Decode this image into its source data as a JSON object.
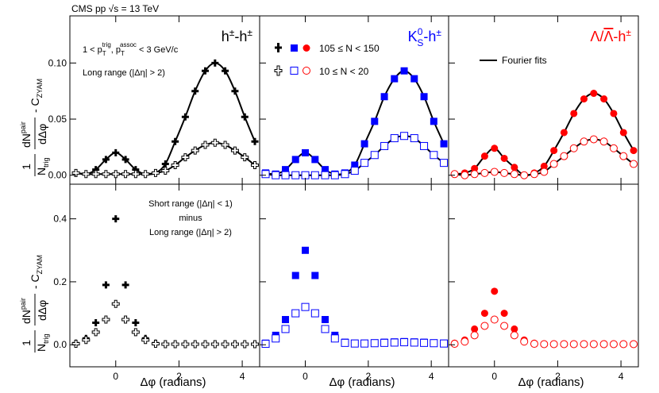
{
  "header": "CMS pp √s = 13 TeV",
  "ylabel": {
    "one": "1",
    "n": "N",
    "trig": "trig",
    "dn": "dN",
    "pair": "pair",
    "dphi": "dΔφ",
    "minus_c": "- C",
    "zyam": "ZYAM"
  },
  "xlabel": "Δφ (radians)",
  "cuts": {
    "a": "1 < p",
    "t1": "T",
    "trig": "trig",
    "b": ", p",
    "t2": "T",
    "assoc": "assoc",
    "c": " < 3 GeV/c"
  },
  "long_range": "Long range (|Δη| > 2)",
  "short_note": [
    "Short range (|Δη| < 1)",
    "minus",
    "Long range (|Δη| > 2)"
  ],
  "species": [
    {
      "base": "h",
      "sup": "±",
      "mid": "-h",
      "sup2": "±"
    },
    {
      "base": "K",
      "sup": "0",
      "sub": "S",
      "mid": "-h",
      "sup2": "±"
    },
    {
      "base": "Λ/",
      "bar": "Λ",
      "mid": "-h",
      "sup2": "±"
    }
  ],
  "legend": {
    "high": "105 ≤ N < 150",
    "low": "10 ≤ N < 20",
    "fit": "Fourier fits"
  },
  "chart_data": [
    {
      "type": "scatter",
      "fourier_fit": true,
      "ytick_labels": true,
      "xtick_labels": false,
      "xlim": [
        -1.45,
        4.55
      ],
      "xticks": [
        0,
        2,
        4
      ],
      "ylim": [
        -0.008,
        0.142
      ],
      "yticks": [
        {
          "value": 0,
          "label": "0.00"
        },
        0.05,
        {
          "value": 0.1,
          "label": "0.10"
        }
      ],
      "x": [
        -1.26,
        -0.94,
        -0.63,
        -0.31,
        0,
        0.31,
        0.63,
        0.94,
        1.26,
        1.57,
        1.88,
        2.2,
        2.51,
        2.83,
        3.14,
        3.46,
        3.77,
        4.08,
        4.4
      ],
      "series": [
        {
          "color": "#000000",
          "marker": "cross",
          "filled": true,
          "values": [
            0.002,
            0.001,
            0.005,
            0.014,
            0.02,
            0.014,
            0.005,
            0.001,
            0.002,
            0.01,
            0.03,
            0.052,
            0.075,
            0.093,
            0.1,
            0.093,
            0.075,
            0.052,
            0.03
          ]
        },
        {
          "color": "#000000",
          "marker": "cross",
          "filled": false,
          "values": [
            0.002,
            0.001,
            0.001,
            0.001,
            0.001,
            0.001,
            0.001,
            0.001,
            0.002,
            0.004,
            0.009,
            0.016,
            0.022,
            0.027,
            0.029,
            0.027,
            0.022,
            0.016,
            0.009
          ]
        }
      ]
    },
    {
      "type": "scatter",
      "fourier_fit": true,
      "ytick_labels": false,
      "xtick_labels": false,
      "xlim": [
        -1.45,
        4.55
      ],
      "xticks": [
        0,
        2,
        4
      ],
      "ylim": [
        -0.008,
        0.142
      ],
      "yticks": [
        0,
        0.05,
        0.1
      ],
      "x": [
        -1.26,
        -0.94,
        -0.63,
        -0.31,
        0,
        0.31,
        0.63,
        0.94,
        1.26,
        1.57,
        1.88,
        2.2,
        2.51,
        2.83,
        3.14,
        3.46,
        3.77,
        4.08,
        4.4
      ],
      "series": [
        {
          "color": "#0000ff",
          "marker": "square",
          "filled": true,
          "values": [
            0.002,
            0.001,
            0.005,
            0.014,
            0.02,
            0.014,
            0.005,
            0.001,
            0.002,
            0.009,
            0.028,
            0.048,
            0.07,
            0.086,
            0.093,
            0.086,
            0.07,
            0.048,
            0.028
          ]
        },
        {
          "color": "#0000ff",
          "marker": "square",
          "filled": false,
          "values": [
            0.001,
            0,
            0,
            0,
            0,
            0,
            0,
            0,
            0.001,
            0.004,
            0.011,
            0.018,
            0.026,
            0.033,
            0.035,
            0.033,
            0.026,
            0.018,
            0.011
          ]
        }
      ]
    },
    {
      "type": "scatter",
      "fourier_fit": true,
      "ytick_labels": false,
      "xtick_labels": false,
      "xlim": [
        -1.45,
        4.55
      ],
      "xticks": [
        0,
        2,
        4
      ],
      "ylim": [
        -0.008,
        0.142
      ],
      "yticks": [
        0,
        0.05,
        0.1
      ],
      "x": [
        -1.26,
        -0.94,
        -0.63,
        -0.31,
        0,
        0.31,
        0.63,
        0.94,
        1.26,
        1.57,
        1.88,
        2.2,
        2.51,
        2.83,
        3.14,
        3.46,
        3.77,
        4.08,
        4.4
      ],
      "series": [
        {
          "color": "#ff0000",
          "marker": "circle",
          "filled": true,
          "values": [
            0.001,
            0.002,
            0.006,
            0.017,
            0.024,
            0.015,
            0.007,
            0,
            0.002,
            0.008,
            0.022,
            0.038,
            0.055,
            0.068,
            0.073,
            0.068,
            0.055,
            0.038,
            0.022
          ]
        },
        {
          "color": "#ff0000",
          "marker": "circle",
          "filled": false,
          "values": [
            0.001,
            0,
            0.001,
            0.002,
            0.003,
            0.002,
            0.001,
            0,
            0.001,
            0.003,
            0.01,
            0.017,
            0.024,
            0.03,
            0.032,
            0.03,
            0.024,
            0.017,
            0.01
          ]
        }
      ]
    },
    {
      "type": "scatter",
      "fourier_fit": false,
      "ytick_labels": true,
      "xtick_labels": true,
      "xlim": [
        -1.45,
        4.55
      ],
      "xticks": [
        0,
        2,
        4
      ],
      "ylim": [
        -0.07,
        0.51
      ],
      "yticks": [
        {
          "value": 0,
          "label": "0.0"
        },
        0.2,
        0.4
      ],
      "x": [
        -1.26,
        -0.94,
        -0.63,
        -0.31,
        0,
        0.31,
        0.63,
        0.94,
        1.26,
        1.57,
        1.88,
        2.2,
        2.51,
        2.83,
        3.14,
        3.46,
        3.77,
        4.08,
        4.4
      ],
      "series": [
        {
          "color": "#000000",
          "marker": "cross",
          "filled": true,
          "values": [
            0.005,
            0.02,
            0.07,
            0.19,
            0.4,
            0.19,
            0.07,
            0.02,
            0.005,
            0.003,
            0.003,
            0.003,
            0.003,
            0.003,
            0.003,
            0.003,
            0.003,
            0.003,
            0.003
          ]
        },
        {
          "color": "#000000",
          "marker": "cross",
          "filled": false,
          "values": [
            0.003,
            0.015,
            0.04,
            0.08,
            0.13,
            0.08,
            0.04,
            0.015,
            0.003,
            0.002,
            0.002,
            0.002,
            0.002,
            0.002,
            0.002,
            0.002,
            0.002,
            0.002,
            0.002
          ]
        }
      ]
    },
    {
      "type": "scatter",
      "fourier_fit": false,
      "ytick_labels": false,
      "xtick_labels": true,
      "xlim": [
        -1.45,
        4.55
      ],
      "xticks": [
        0,
        2,
        4
      ],
      "ylim": [
        -0.07,
        0.51
      ],
      "yticks": [
        0,
        0.2,
        0.4
      ],
      "x": [
        -1.26,
        -0.94,
        -0.63,
        -0.31,
        0,
        0.31,
        0.63,
        0.94,
        1.26,
        1.57,
        1.88,
        2.2,
        2.51,
        2.83,
        3.14,
        3.46,
        3.77,
        4.08,
        4.4
      ],
      "series": [
        {
          "color": "#0000ff",
          "marker": "square",
          "filled": true,
          "values": [
            0.005,
            0.03,
            0.08,
            0.22,
            0.3,
            0.22,
            0.08,
            0.03,
            0.008,
            0.005,
            0.005,
            0.006,
            0.008,
            0.009,
            0.01,
            0.009,
            0.008,
            0.006,
            0.005
          ]
        },
        {
          "color": "#0000ff",
          "marker": "square",
          "filled": false,
          "values": [
            0.003,
            0.02,
            0.05,
            0.1,
            0.12,
            0.1,
            0.05,
            0.02,
            0.006,
            0.004,
            0.004,
            0.005,
            0.006,
            0.007,
            0.008,
            0.007,
            0.006,
            0.005,
            0.004
          ]
        }
      ]
    },
    {
      "type": "scatter",
      "fourier_fit": false,
      "ytick_labels": false,
      "xtick_labels": true,
      "xlim": [
        -1.45,
        4.55
      ],
      "xticks": [
        0,
        2,
        4
      ],
      "ylim": [
        -0.07,
        0.51
      ],
      "yticks": [
        0,
        0.2,
        0.4
      ],
      "x": [
        -1.26,
        -0.94,
        -0.63,
        -0.31,
        0,
        0.31,
        0.63,
        0.94,
        1.26,
        1.57,
        1.88,
        2.2,
        2.51,
        2.83,
        3.14,
        3.46,
        3.77,
        4.08,
        4.4
      ],
      "series": [
        {
          "color": "#ff0000",
          "marker": "circle",
          "filled": true,
          "values": [
            0.005,
            0.015,
            0.05,
            0.1,
            0.17,
            0.1,
            0.05,
            0.015,
            0.005,
            0.003,
            0.003,
            0.003,
            0.003,
            0.003,
            0.003,
            0.003,
            0.003,
            0.003,
            0.003
          ]
        },
        {
          "color": "#ff0000",
          "marker": "circle",
          "filled": false,
          "values": [
            0.003,
            0.01,
            0.03,
            0.06,
            0.08,
            0.06,
            0.03,
            0.01,
            0.003,
            0.002,
            0.002,
            0.002,
            0.002,
            0.002,
            0.002,
            0.002,
            0.002,
            0.002,
            0.002
          ]
        }
      ]
    }
  ]
}
